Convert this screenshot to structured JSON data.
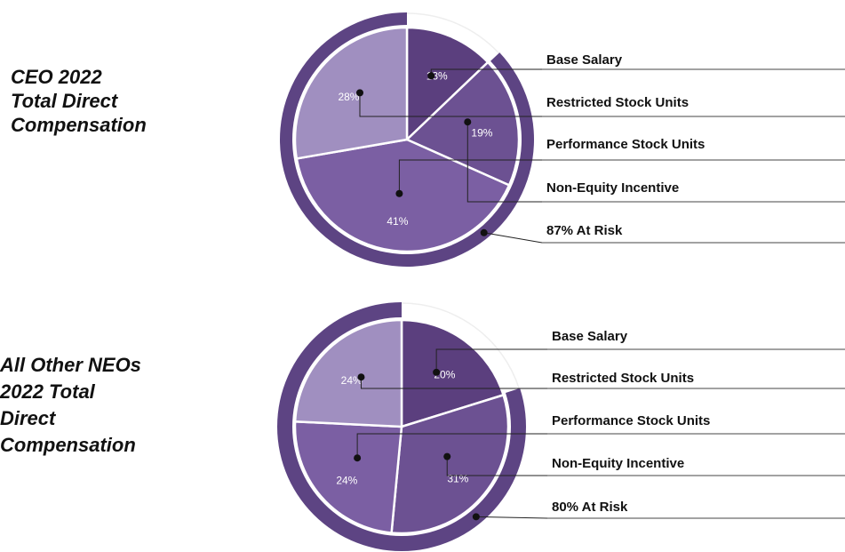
{
  "chart_data": [
    {
      "type": "pie",
      "title_lines": [
        "CEO 2022",
        "Total Direct",
        "Compensation"
      ],
      "categories": [
        "Base Salary",
        "Restricted Stock Units",
        "Performance Stock Units",
        "Non-Equity Incentive"
      ],
      "values": [
        13,
        28,
        41,
        19
      ],
      "value_labels": [
        "13%",
        "28%",
        "41%",
        "19%"
      ],
      "colors": [
        "#5b3f7e",
        "#a08fc0",
        "#7b5fa3",
        "#6c5192"
      ],
      "at_risk": {
        "value": 87,
        "label": "87% At Risk"
      },
      "ring_color": "#5d4483"
    },
    {
      "type": "pie",
      "title_lines": [
        "All Other NEOs",
        "2022 Total",
        "Direct",
        "Compensation"
      ],
      "categories": [
        "Base Salary",
        "Restricted Stock Units",
        "Performance Stock Units",
        "Non-Equity Incentive"
      ],
      "values": [
        20,
        24,
        24,
        31
      ],
      "value_labels": [
        "20%",
        "24%",
        "24%",
        "31%"
      ],
      "colors": [
        "#5b3f7e",
        "#a08fc0",
        "#7b5fa3",
        "#6c5192"
      ],
      "at_risk": {
        "value": 80,
        "label": "80% At Risk"
      },
      "ring_color": "#5d4483"
    }
  ]
}
